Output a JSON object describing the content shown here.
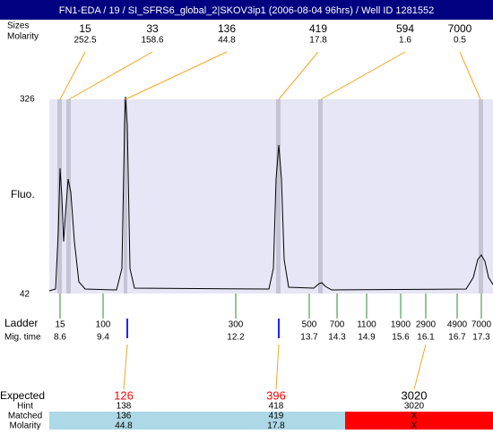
{
  "header": {
    "title": "FN1-EDA / 19 / SI_SFRS6_global_2|SKOV3ip1 (2006-08-04 96hrs) / Well ID 1281552"
  },
  "peaks": {
    "size_label": "Sizes",
    "molarity_label": "Molarity",
    "sizes": [
      15,
      33,
      136,
      419,
      594,
      7000
    ],
    "molarity": [
      252.5,
      158.6,
      44.8,
      17.8,
      1.6,
      0.5
    ]
  },
  "axis": {
    "label": "Fluo.",
    "top": 326,
    "bottom": 42
  },
  "ladder": {
    "label": "Ladder",
    "mig_label": "Mig. time",
    "sizes": [
      15,
      100,
      300,
      500,
      700,
      1100,
      1900,
      2900,
      4900,
      7000
    ],
    "mig_times": [
      8.6,
      9.4,
      12.2,
      13.7,
      14.3,
      14.9,
      15.6,
      16.1,
      16.7,
      17.3
    ]
  },
  "results": {
    "expected_label": "Expected",
    "hint_label": "Hint",
    "matched_label": "Matched",
    "molarity_label": "Molarity",
    "expected": [
      126,
      396,
      3020
    ],
    "hint": [
      138,
      418,
      3020
    ],
    "matched": [
      136,
      419,
      "X"
    ],
    "molarity": [
      44.8,
      17.8,
      "X"
    ]
  }
}
